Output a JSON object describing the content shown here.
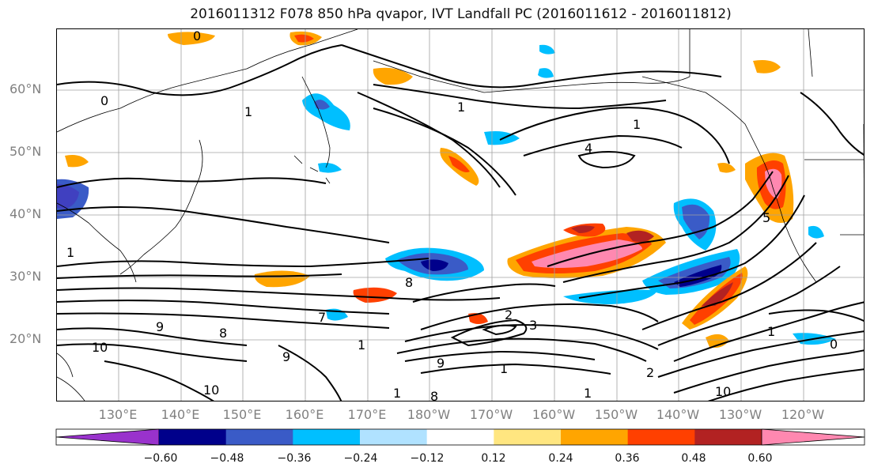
{
  "title": "2016011312 F078 850 hPa qvapor, IVT Landfall PC (2016011612 - 2016011812)",
  "lat_labels": [
    "60°N",
    "50°N",
    "40°N",
    "30°N",
    "20°N"
  ],
  "lon_labels": [
    "130°E",
    "140°E",
    "150°E",
    "160°E",
    "170°E",
    "180°W",
    "170°W",
    "160°W",
    "150°W",
    "140°W",
    "130°W",
    "120°W"
  ],
  "contour_labels": [
    "0",
    "0",
    "1",
    "1",
    "1",
    "4",
    "2",
    "3",
    "8",
    "9",
    "10",
    "7",
    "9",
    "8",
    "10",
    "9",
    "1",
    "1",
    "8",
    "1",
    "2",
    "1",
    "0",
    "1",
    "10",
    "1",
    "5"
  ],
  "colorbar": {
    "colors": [
      "#9932cc",
      "#00008b",
      "#3a5bc7",
      "#00bfff",
      "#b0e2ff",
      "#ffffff",
      "#ffe680",
      "#ffa500",
      "#ff4000",
      "#b22222",
      "#ff88b0"
    ],
    "ticks": [
      "−0.60",
      "−0.48",
      "−0.36",
      "−0.24",
      "−0.12",
      "0.12",
      "0.24",
      "0.36",
      "0.48",
      "0.60"
    ]
  }
}
